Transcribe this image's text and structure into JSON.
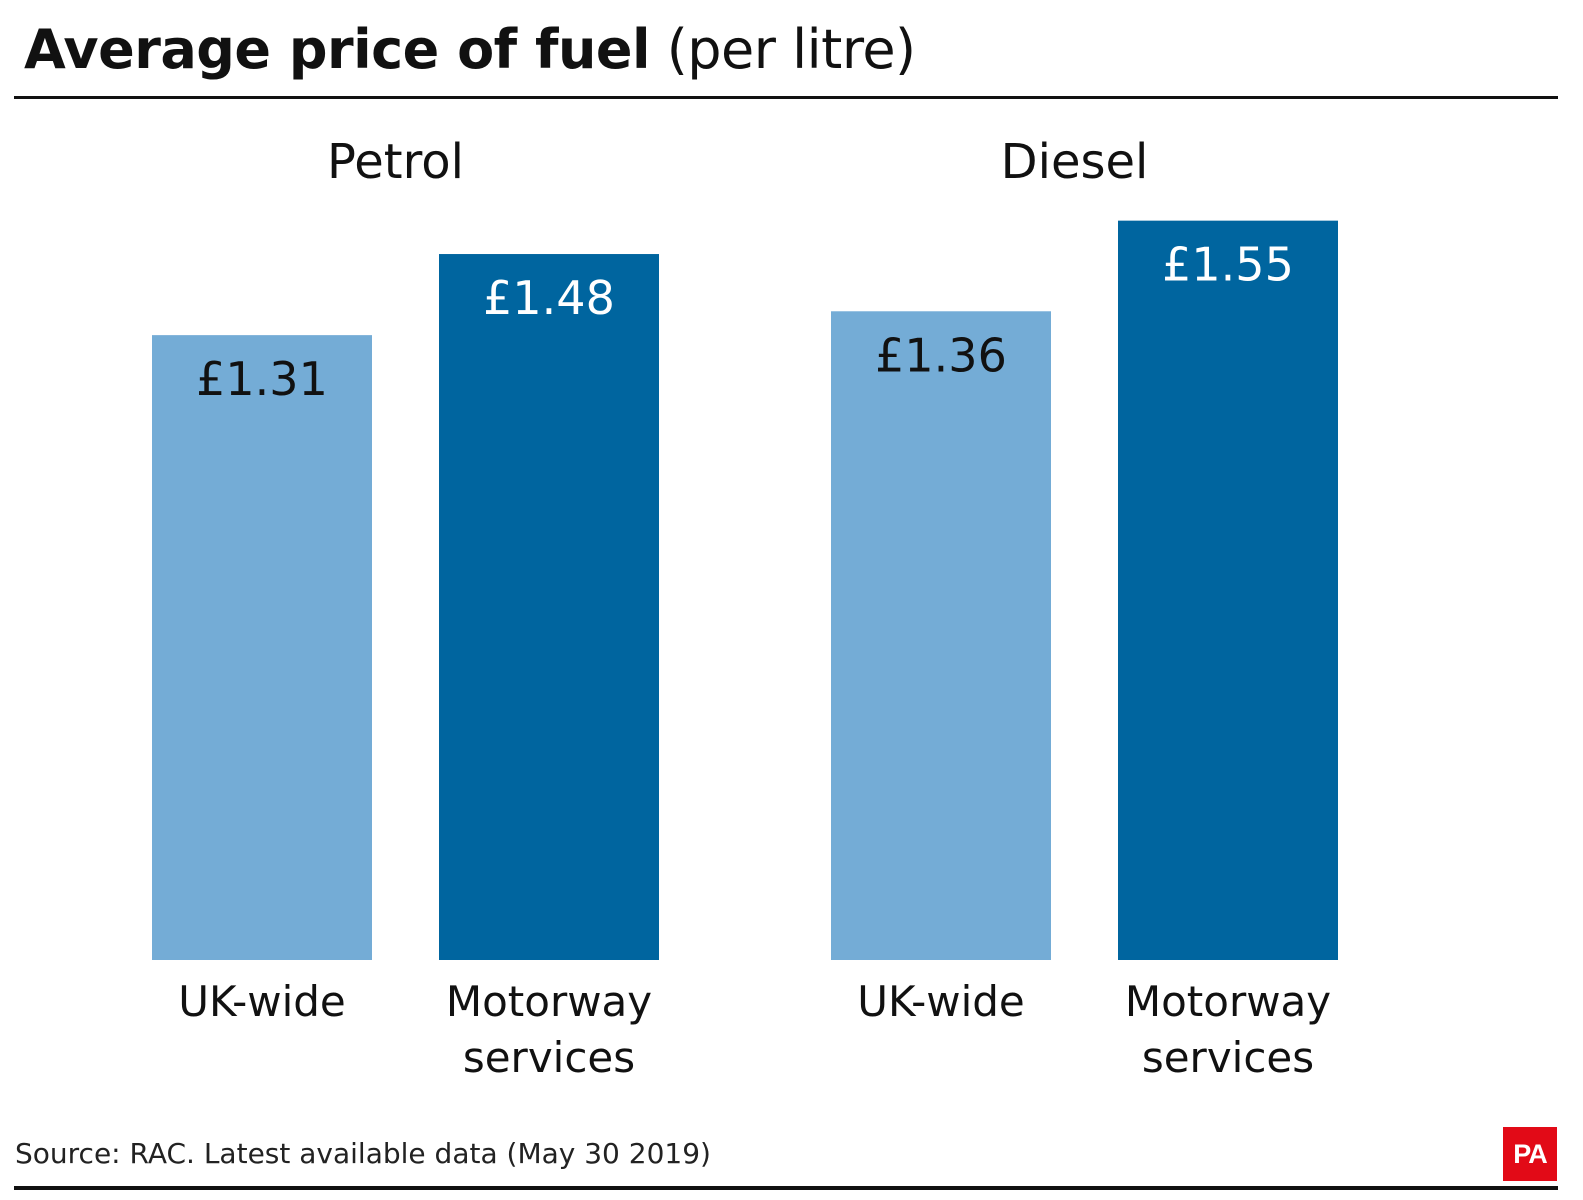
{
  "header": {
    "title_bold": "Average price of fuel",
    "title_light": "(per litre)"
  },
  "footer": {
    "source": "Source: RAC. Latest available data (May 30 2019)",
    "logo_text": "PA"
  },
  "chart_data": {
    "type": "bar",
    "title": "Average price of fuel (per litre)",
    "ylim": [
      0,
      1.6
    ],
    "grid": false,
    "legend": "none",
    "colors": {
      "uk_wide": "#74acd6",
      "motorway": "#00659f",
      "label_on_light": "#111111",
      "label_on_dark": "#ffffff"
    },
    "groups": [
      {
        "name": "Petrol",
        "bars": [
          {
            "category": [
              "UK-wide"
            ],
            "value": 1.31,
            "label": "£1.31",
            "style": "uk_wide"
          },
          {
            "category": [
              "Motorway",
              "services"
            ],
            "value": 1.48,
            "label": "£1.48",
            "style": "motorway"
          }
        ]
      },
      {
        "name": "Diesel",
        "bars": [
          {
            "category": [
              "UK-wide"
            ],
            "value": 1.36,
            "label": "£1.36",
            "style": "uk_wide"
          },
          {
            "category": [
              "Motorway",
              "services"
            ],
            "value": 1.55,
            "label": "£1.55",
            "style": "motorway"
          }
        ]
      }
    ]
  }
}
